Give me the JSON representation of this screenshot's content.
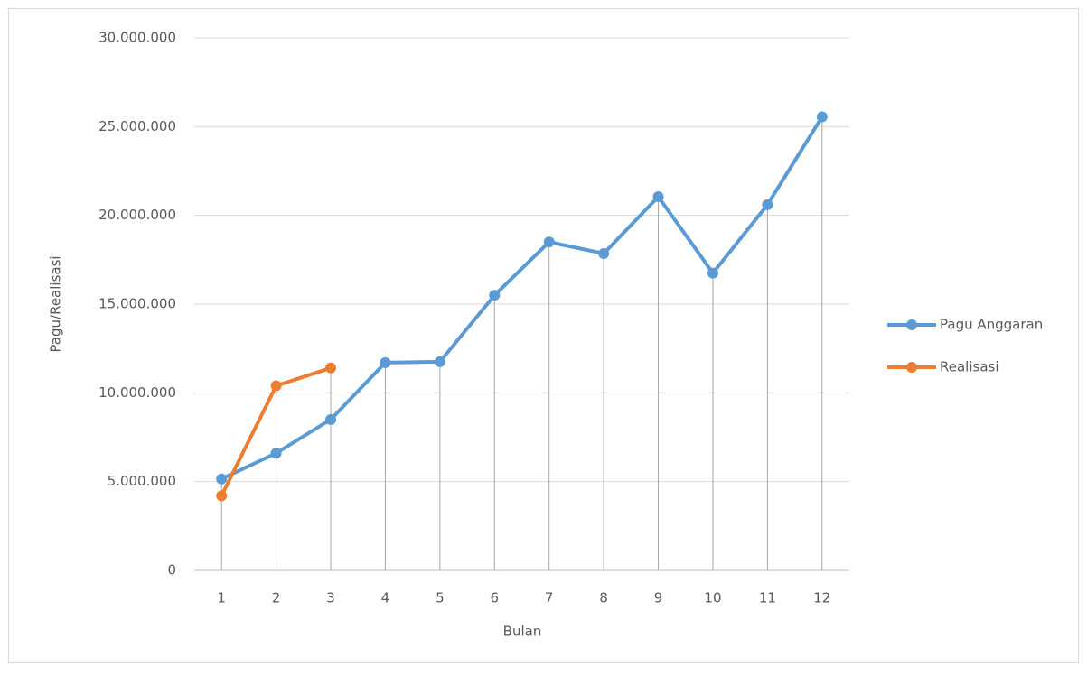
{
  "chart_data": {
    "type": "line",
    "x_label": "Bulan",
    "y_label": "Pagu/Realisasi",
    "categories": [
      "1",
      "2",
      "3",
      "4",
      "5",
      "6",
      "7",
      "8",
      "9",
      "10",
      "11",
      "12"
    ],
    "series": [
      {
        "name": "Pagu Anggaran",
        "color": "#5b9bd5",
        "values": [
          5150000,
          6600000,
          8500000,
          11700000,
          11750000,
          15500000,
          18500000,
          17850000,
          21050000,
          16750000,
          20600000,
          25550000
        ]
      },
      {
        "name": "Realisasi",
        "color": "#ed7d31",
        "values": [
          4200000,
          10400000,
          11400000,
          null,
          null,
          null,
          null,
          null,
          null,
          null,
          null,
          null
        ]
      }
    ],
    "ylim": [
      0,
      30000000
    ],
    "yticks": [
      0,
      {
        "value": 5000000,
        "label": "5.000.000"
      },
      {
        "value": 10000000,
        "label": "10.000.000"
      },
      {
        "value": 15000000,
        "label": "15.000.000"
      },
      {
        "value": 20000000,
        "label": "20.000.000"
      },
      {
        "value": 25000000,
        "label": "25.000.000"
      },
      {
        "value": 30000000,
        "label": "30.000.000"
      }
    ],
    "grid": true,
    "drop_lines": true,
    "legend": "right"
  }
}
